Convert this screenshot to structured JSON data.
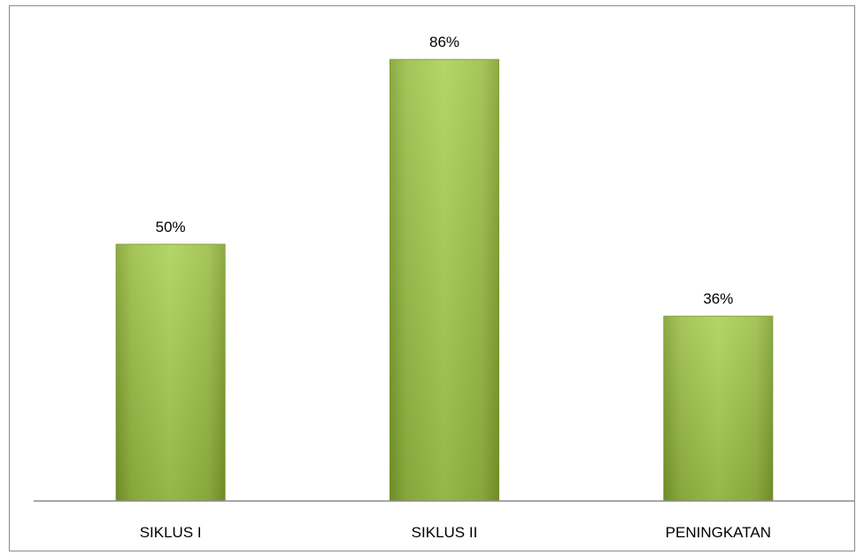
{
  "chart_data": {
    "type": "bar",
    "title": "",
    "xlabel": "",
    "ylabel": "",
    "categories": [
      "SIKLUS I",
      "SIKLUS II",
      "PENINGKATAN"
    ],
    "values": [
      50,
      86,
      36
    ],
    "data_labels": [
      "50%",
      "86%",
      "36%"
    ],
    "ylim": [
      0,
      100
    ],
    "grid": false,
    "legend": "none",
    "bar_color": "#9bbb3b"
  }
}
